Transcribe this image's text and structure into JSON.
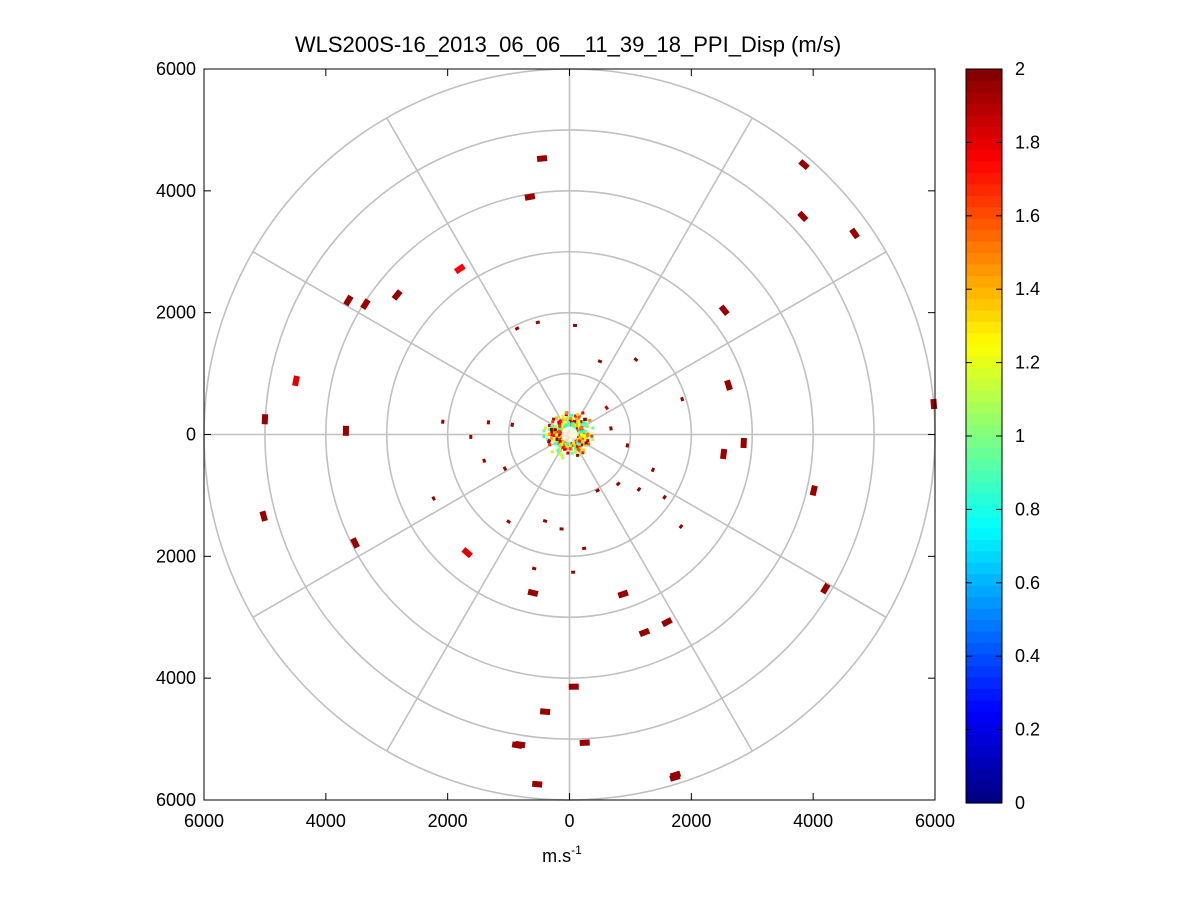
{
  "chart_data": {
    "type": "scatter",
    "subtype": "polar-ppi",
    "title": "WLS200S-16_2013_06_06__11_39_18_PPI_Disp (m/s)",
    "xlabel": {
      "base": "m.s",
      "sup": "-1"
    },
    "ylabel": "",
    "xlim": [
      -6000,
      6000
    ],
    "ylim": [
      -6000,
      6000
    ],
    "x_ticks": [
      -6000,
      -4000,
      -2000,
      0,
      2000,
      4000,
      6000
    ],
    "x_tick_labels": [
      "6000",
      "4000",
      "2000",
      "0",
      "2000",
      "4000",
      "6000"
    ],
    "y_ticks": [
      6000,
      4000,
      2000,
      0,
      -2000,
      -4000,
      -6000
    ],
    "y_tick_labels": [
      "6000",
      "4000",
      "2000",
      "0",
      "2000",
      "4000",
      "6000"
    ],
    "polar_grid": {
      "ring_radii": [
        1000,
        2000,
        3000,
        4000,
        5000,
        6000
      ],
      "spoke_angles_deg": [
        0,
        30,
        60,
        90,
        120,
        150
      ]
    },
    "grid": true,
    "colormap": "jet",
    "clim": [
      0,
      2
    ],
    "colorbar": {
      "ticks": [
        0,
        0.2,
        0.4,
        0.6,
        0.8,
        1,
        1.2,
        1.4,
        1.6,
        1.8,
        2
      ],
      "tick_labels": [
        "0",
        "0.2",
        "0.4",
        "0.6",
        "0.8",
        "1",
        "1.2",
        "1.4",
        "1.6",
        "1.8",
        "2"
      ],
      "position": "right"
    },
    "points": [
      {
        "x": -450,
        "y": 4530,
        "v": 1.95
      },
      {
        "x": -650,
        "y": 3900,
        "v": 1.95
      },
      {
        "x": 3850,
        "y": 4430,
        "v": 1.95
      },
      {
        "x": 3830,
        "y": 3580,
        "v": 1.95
      },
      {
        "x": 4680,
        "y": 3300,
        "v": 1.95
      },
      {
        "x": -1800,
        "y": 2720,
        "v": 1.75
      },
      {
        "x": -3630,
        "y": 2200,
        "v": 1.95
      },
      {
        "x": -3350,
        "y": 2140,
        "v": 1.95
      },
      {
        "x": -2830,
        "y": 2290,
        "v": 1.95
      },
      {
        "x": 2540,
        "y": 2040,
        "v": 1.95
      },
      {
        "x": -4490,
        "y": 880,
        "v": 1.8
      },
      {
        "x": 2610,
        "y": 810,
        "v": 1.95
      },
      {
        "x": -5000,
        "y": 250,
        "v": 1.95
      },
      {
        "x": -3670,
        "y": 60,
        "v": 1.95
      },
      {
        "x": 5980,
        "y": 500,
        "v": 1.95
      },
      {
        "x": 2860,
        "y": -140,
        "v": 1.95
      },
      {
        "x": 2530,
        "y": -320,
        "v": 1.95
      },
      {
        "x": -5020,
        "y": -1340,
        "v": 1.95
      },
      {
        "x": -3520,
        "y": -1780,
        "v": 1.95
      },
      {
        "x": -2230,
        "y": -1050,
        "v": 1.95
      },
      {
        "x": 4010,
        "y": -920,
        "v": 1.95
      },
      {
        "x": 1830,
        "y": -1510,
        "v": 1.95
      },
      {
        "x": -1680,
        "y": -1940,
        "v": 1.8
      },
      {
        "x": 4200,
        "y": -2530,
        "v": 1.95
      },
      {
        "x": -600,
        "y": -2600,
        "v": 1.95
      },
      {
        "x": 880,
        "y": -2620,
        "v": 1.95
      },
      {
        "x": 1600,
        "y": -3080,
        "v": 1.95
      },
      {
        "x": 1230,
        "y": -3250,
        "v": 1.95
      },
      {
        "x": 70,
        "y": -4140,
        "v": 1.95
      },
      {
        "x": -400,
        "y": -4550,
        "v": 1.95
      },
      {
        "x": -810,
        "y": -5090,
        "v": 1.95
      },
      {
        "x": 250,
        "y": -5060,
        "v": 1.95
      },
      {
        "x": -530,
        "y": -5740,
        "v": 1.95
      },
      {
        "x": 1730,
        "y": -5630,
        "v": 1.95
      },
      {
        "x": 1740,
        "y": -5590,
        "v": 1.95
      },
      {
        "x": -860,
        "y": -5100,
        "v": 1.95
      },
      {
        "x": -2080,
        "y": 210,
        "v": 1.95
      },
      {
        "x": -1330,
        "y": 200,
        "v": 1.95
      },
      {
        "x": -1620,
        "y": -40,
        "v": 1.95
      },
      {
        "x": -1400,
        "y": -430,
        "v": 1.95
      },
      {
        "x": -1000,
        "y": -1430,
        "v": 1.95
      },
      {
        "x": -400,
        "y": -1420,
        "v": 1.95
      },
      {
        "x": -130,
        "y": -1550,
        "v": 1.95
      },
      {
        "x": 240,
        "y": -1870,
        "v": 1.95
      },
      {
        "x": -580,
        "y": -2200,
        "v": 1.95
      },
      {
        "x": 1370,
        "y": -580,
        "v": 1.95
      },
      {
        "x": 1140,
        "y": -900,
        "v": 1.95
      },
      {
        "x": 1560,
        "y": -1030,
        "v": 1.95
      },
      {
        "x": 1850,
        "y": 580,
        "v": 1.95
      },
      {
        "x": 1090,
        "y": 1230,
        "v": 1.95
      },
      {
        "x": 500,
        "y": 1200,
        "v": 1.95
      },
      {
        "x": 90,
        "y": 1790,
        "v": 1.95
      },
      {
        "x": -520,
        "y": 1840,
        "v": 1.95
      },
      {
        "x": -860,
        "y": 1740,
        "v": 1.95
      },
      {
        "x": 460,
        "y": -920,
        "v": 1.95
      },
      {
        "x": 800,
        "y": -810,
        "v": 1.95
      },
      {
        "x": 680,
        "y": 100,
        "v": 1.95
      },
      {
        "x": 610,
        "y": 440,
        "v": 1.85
      },
      {
        "x": 950,
        "y": -180,
        "v": 1.95
      },
      {
        "x": -940,
        "y": 160,
        "v": 1.95
      },
      {
        "x": -1060,
        "y": -560,
        "v": 1.95
      },
      {
        "x": 60,
        "y": -2260,
        "v": 1.95
      }
    ],
    "center_cluster": {
      "x": 0,
      "y": 0,
      "radius": 450,
      "value_range": [
        0.8,
        2
      ]
    }
  }
}
